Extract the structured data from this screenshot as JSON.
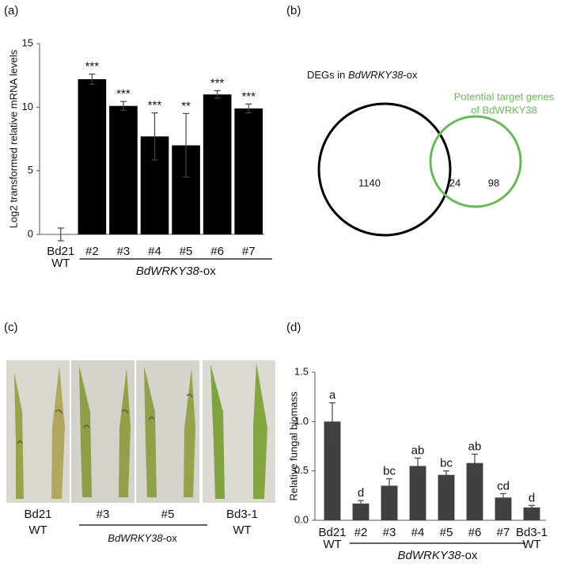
{
  "panel_labels": [
    "(a)",
    "(b)",
    "(c)",
    "(d)"
  ],
  "chart_data": [
    {
      "type": "bar",
      "ylabel": "Log2 transformed relative mRNA levels",
      "categories": [
        [
          "Bd21",
          "WT"
        ],
        [
          "#2"
        ],
        [
          "#3"
        ],
        [
          "#4"
        ],
        [
          "#5"
        ],
        [
          "#6"
        ],
        [
          "#7"
        ]
      ],
      "values": [
        0,
        12.2,
        10.1,
        7.7,
        7.0,
        11.0,
        9.9
      ],
      "errors": [
        0.5,
        0.4,
        0.35,
        1.85,
        2.5,
        0.3,
        0.35
      ],
      "annotations": [
        null,
        "***",
        "***",
        "***",
        "**",
        "***",
        "***"
      ],
      "group_label": [
        "BdWRKY38",
        "-ox"
      ],
      "color": "#000000",
      "ylim": [
        0,
        15
      ],
      "yticks": [
        0,
        5,
        10,
        15
      ],
      "grid": false
    },
    {
      "type": "venn",
      "sets": [
        {
          "label": [
            "DEGs in ",
            "BdWRKY38",
            "-ox"
          ],
          "color": "#000000"
        },
        {
          "label": [
            "Potential target genes",
            "of BdWRKY38"
          ],
          "color": "#6bb85c"
        }
      ],
      "only_a": 1140,
      "both": 24,
      "only_b": 98
    },
    {
      "type": "bar",
      "ylabel": "Relative fungal biomass",
      "categories": [
        [
          "Bd21",
          "WT"
        ],
        [
          "#2"
        ],
        [
          "#3"
        ],
        [
          "#4"
        ],
        [
          "#5"
        ],
        [
          "#6"
        ],
        [
          "#7"
        ],
        [
          "Bd3-1",
          "WT"
        ]
      ],
      "values": [
        1.0,
        0.17,
        0.35,
        0.55,
        0.46,
        0.58,
        0.23,
        0.13
      ],
      "errors": [
        0.19,
        0.03,
        0.07,
        0.08,
        0.04,
        0.09,
        0.04,
        0.02
      ],
      "annotations": [
        "a",
        "d",
        "bc",
        "ab",
        "bc",
        "ab",
        "cd",
        "d"
      ],
      "group_label": [
        "BdWRKY38",
        "-ox"
      ],
      "color": "#404040",
      "ylim": [
        0,
        1.5
      ],
      "yticks": [
        {
          "value": 0,
          "label": "0.0"
        },
        0.5,
        {
          "value": 1,
          "label": "1.0"
        },
        1.5
      ],
      "grid": false
    }
  ],
  "photo": {
    "labels": [
      [
        "Bd21",
        "WT"
      ],
      [
        "#3"
      ],
      [
        "#5"
      ],
      [
        "Bd3-1",
        "WT"
      ]
    ],
    "group_label": [
      "BdWRKY38",
      "-ox"
    ]
  }
}
